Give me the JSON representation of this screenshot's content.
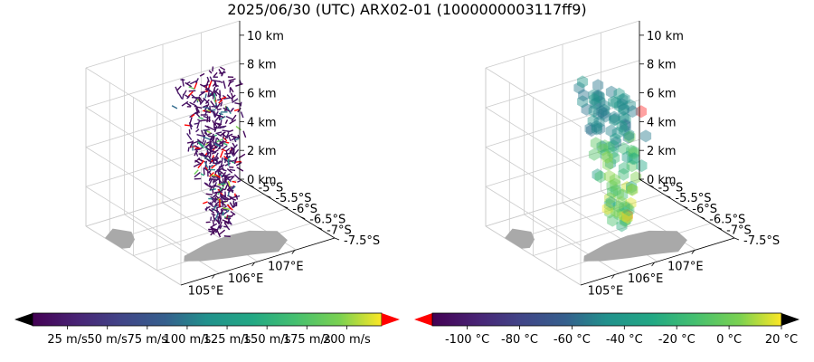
{
  "title": "2025/06/30 (UTC) ARX02-01 (1000000003117ff9)",
  "chart_data": [
    {
      "type": "3d-scatter",
      "marker": "wind-segment",
      "panel": "left",
      "x_ticks": [
        "105°E",
        "106°E",
        "107°E"
      ],
      "y_ticks": [
        "-5°S",
        "-5.5°S",
        "-6°S",
        "-6.5°S",
        "-7°S",
        "-7.5°S"
      ],
      "z_ticks": [
        "0 km",
        "2 km",
        "4 km",
        "6 km",
        "8 km",
        "10 km"
      ],
      "z_range": [
        0,
        11
      ],
      "grid": true,
      "colorbar": {
        "colormap": "viridis",
        "extend": "both",
        "over_color": "#ff0000",
        "under_color": "#000000",
        "ticks": [
          "25 m/s",
          "50 m/s",
          "75 m/s",
          "100 m/s",
          "125 m/s",
          "150 m/s",
          "175 m/s",
          "200 m/s"
        ]
      }
    },
    {
      "type": "3d-scatter",
      "marker": "hexagon",
      "panel": "right",
      "x_ticks": [
        "105°E",
        "106°E",
        "107°E"
      ],
      "y_ticks": [
        "-5°S",
        "-5.5°S",
        "-6°S",
        "-6.5°S",
        "-7°S",
        "-7.5°S"
      ],
      "z_ticks": [
        "0 km",
        "2 km",
        "4 km",
        "6 km",
        "8 km",
        "10 km"
      ],
      "z_range": [
        0,
        11
      ],
      "grid": true,
      "colorbar": {
        "colormap": "viridis",
        "extend": "both",
        "over_color": "#000000",
        "under_color": "#ff0000",
        "ticks": [
          "-100 °C",
          "-80 °C",
          "-60 °C",
          "-40 °C",
          "-20 °C",
          "0 °C",
          "20 °C"
        ]
      }
    }
  ],
  "colors": {
    "land": "#a9a9a9",
    "grid": "#cccccc",
    "axis": "#000000"
  }
}
